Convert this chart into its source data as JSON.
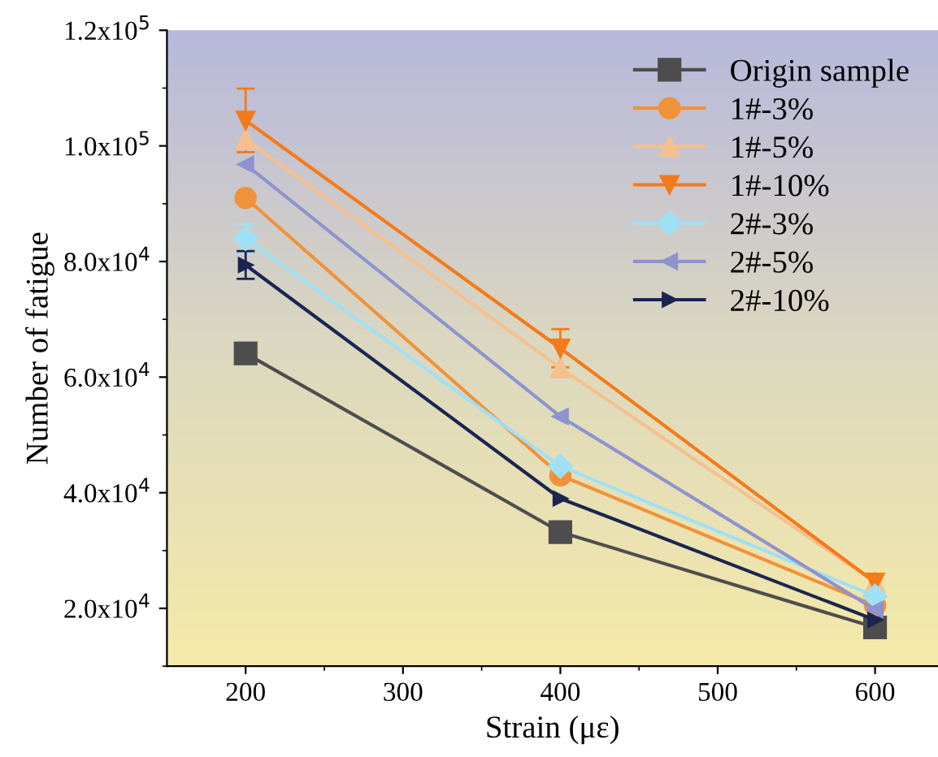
{
  "chart_data": {
    "type": "line",
    "xlabel": "Strain (με)",
    "ylabel": "Number of fatigue",
    "x": [
      200,
      400,
      600
    ],
    "xlim": [
      150,
      640
    ],
    "xticks": [
      200,
      300,
      400,
      500,
      600
    ],
    "ylim": [
      10000,
      120000
    ],
    "yticks": [
      {
        "value": 20000,
        "label": "2.0x10$^{4}$"
      },
      {
        "value": 40000,
        "label": "4.0x10$^{4}$"
      },
      {
        "value": 60000,
        "label": "6.0x10$^{4}$"
      },
      {
        "value": 80000,
        "label": "8.0x10$^{4}$"
      },
      {
        "value": 100000,
        "label": "1.0x10$^{5}$"
      },
      {
        "value": 120000,
        "label": "1.2x10$^{5}$"
      }
    ],
    "legend": "top right",
    "grid": false,
    "line_style": "solid",
    "series": [
      {
        "name": "Origin sample",
        "color": "#4d4d4d",
        "marker": "square",
        "values": [
          64100,
          33200,
          16700
        ],
        "errors": [
          1500,
          null,
          null
        ]
      },
      {
        "name": "1#-3%",
        "color": "#f0923a",
        "marker": "circle",
        "values": [
          91000,
          43000,
          20500
        ]
      },
      {
        "name": "1#-5%",
        "color": "#f5c08e",
        "marker": "triangle",
        "values": [
          101100,
          61600,
          24500
        ]
      },
      {
        "name": "1#-10%",
        "color": "#f57a1a",
        "marker": "triangle_down",
        "values": [
          104400,
          65000,
          24500
        ],
        "errors": [
          5500,
          3300,
          null
        ]
      },
      {
        "name": "2#-3%",
        "color": "#9fe0f5",
        "marker": "diamond",
        "values": [
          84000,
          44600,
          22100
        ],
        "errors": [
          2500,
          null,
          null
        ]
      },
      {
        "name": "2#-5%",
        "color": "#8e93cf",
        "marker": "triangle_left",
        "values": [
          96800,
          53200,
          19800
        ]
      },
      {
        "name": "2#-10%",
        "color": "#1b2550",
        "marker": "triangle_right",
        "values": [
          79400,
          39000,
          18000
        ],
        "errors": [
          2400,
          null,
          null
        ]
      }
    ]
  }
}
